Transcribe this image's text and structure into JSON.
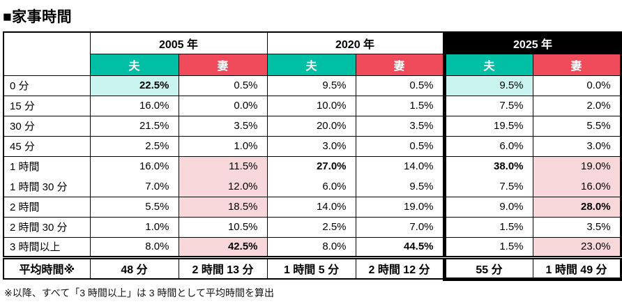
{
  "title": "■家事時間",
  "footnote": "※以降、すべて「3 時間以上」は 3 時間として平均時間を算出",
  "colors": {
    "husband_header": "#00BFA5",
    "wife_header": "#EF4B5A",
    "year_2025_bg": "#000000",
    "highlight_cyan": "#C9F4EF",
    "highlight_pink": "#F8D7DA"
  },
  "table": {
    "corner_label": "",
    "year_headers": [
      {
        "label": "2005 年",
        "dark": false
      },
      {
        "label": "2020 年",
        "dark": false
      },
      {
        "label": "2025 年",
        "dark": true
      }
    ],
    "sub_headers": {
      "husband": "夫",
      "wife": "妻"
    },
    "rows": [
      {
        "label": "0 分",
        "cells": [
          {
            "text": "22.5%",
            "bold": true,
            "highlight": "cyan"
          },
          {
            "text": "0.5%"
          },
          {
            "text": "9.5%"
          },
          {
            "text": "0.5%"
          },
          {
            "text": "9.5%",
            "highlight": "cyan"
          },
          {
            "text": "0.0%"
          }
        ]
      },
      {
        "label": "15 分",
        "cells": [
          {
            "text": "16.0%"
          },
          {
            "text": "0.0%"
          },
          {
            "text": "10.0%"
          },
          {
            "text": "1.5%"
          },
          {
            "text": "7.5%"
          },
          {
            "text": "2.0%"
          }
        ]
      },
      {
        "label": "30 分",
        "cells": [
          {
            "text": "21.5%"
          },
          {
            "text": "3.5%"
          },
          {
            "text": "20.0%"
          },
          {
            "text": "3.5%"
          },
          {
            "text": "19.5%"
          },
          {
            "text": "5.5%"
          }
        ]
      },
      {
        "label": "45 分",
        "cells": [
          {
            "text": "2.5%"
          },
          {
            "text": "1.0%"
          },
          {
            "text": "3.0%"
          },
          {
            "text": "0.5%"
          },
          {
            "text": "6.0%"
          },
          {
            "text": "3.0%"
          }
        ]
      },
      {
        "label": "1 時間",
        "merge_with_next": true,
        "cells": [
          {
            "text": "16.0%"
          },
          {
            "text": "11.5%",
            "highlight": "pink"
          },
          {
            "text": "27.0%",
            "bold": true
          },
          {
            "text": "14.0%"
          },
          {
            "text": "38.0%",
            "bold": true
          },
          {
            "text": "19.0%",
            "highlight": "pink"
          }
        ]
      },
      {
        "label": "1 時間 30 分",
        "cells": [
          {
            "text": "7.0%"
          },
          {
            "text": "12.0%",
            "highlight": "pink"
          },
          {
            "text": "6.0%"
          },
          {
            "text": "9.5%"
          },
          {
            "text": "7.5%"
          },
          {
            "text": "16.0%",
            "highlight": "pink"
          }
        ]
      },
      {
        "label": "2 時間",
        "cells": [
          {
            "text": "5.5%"
          },
          {
            "text": "18.5%",
            "highlight": "pink"
          },
          {
            "text": "14.0%"
          },
          {
            "text": "19.0%"
          },
          {
            "text": "9.0%"
          },
          {
            "text": "28.0%",
            "bold": true,
            "highlight": "pink"
          }
        ]
      },
      {
        "label": "2 時間 30 分",
        "cells": [
          {
            "text": "1.0%"
          },
          {
            "text": "10.5%"
          },
          {
            "text": "2.5%"
          },
          {
            "text": "7.0%"
          },
          {
            "text": "1.5%"
          },
          {
            "text": "3.5%"
          }
        ]
      },
      {
        "label": "3 時間以上",
        "cells": [
          {
            "text": "8.0%"
          },
          {
            "text": "42.5%",
            "bold": true,
            "highlight": "pink"
          },
          {
            "text": "8.0%"
          },
          {
            "text": "44.5%",
            "bold": true
          },
          {
            "text": "1.5%"
          },
          {
            "text": "23.0%",
            "highlight": "pink"
          }
        ]
      }
    ],
    "average_row": {
      "label": "平均時間※",
      "cells": [
        "48 分",
        "2 時間 13 分",
        "1 時間 5 分",
        "2 時間 12 分",
        "55 分",
        "1 時間 49 分"
      ]
    }
  },
  "chart_data": {
    "type": "table",
    "title": "家事時間",
    "unit": "%",
    "categories": [
      "0分",
      "15分",
      "30分",
      "45分",
      "1時間",
      "1時間30分",
      "2時間",
      "2時間30分",
      "3時間以上"
    ],
    "series": [
      {
        "name": "2005年 夫",
        "values": [
          22.5,
          16.0,
          21.5,
          2.5,
          16.0,
          7.0,
          5.5,
          1.0,
          8.0
        ],
        "average": "48分"
      },
      {
        "name": "2005年 妻",
        "values": [
          0.5,
          0.0,
          3.5,
          1.0,
          11.5,
          12.0,
          18.5,
          10.5,
          42.5
        ],
        "average": "2時間13分"
      },
      {
        "name": "2020年 夫",
        "values": [
          9.5,
          10.0,
          20.0,
          3.0,
          27.0,
          6.0,
          14.0,
          2.5,
          8.0
        ],
        "average": "1時間5分"
      },
      {
        "name": "2020年 妻",
        "values": [
          0.5,
          1.5,
          3.5,
          0.5,
          14.0,
          9.5,
          19.0,
          7.0,
          44.5
        ],
        "average": "2時間12分"
      },
      {
        "name": "2025年 夫",
        "values": [
          9.5,
          7.5,
          19.5,
          6.0,
          38.0,
          7.5,
          9.0,
          1.5,
          1.5
        ],
        "average": "55分"
      },
      {
        "name": "2025年 妻",
        "values": [
          0.0,
          2.0,
          5.5,
          3.0,
          19.0,
          16.0,
          28.0,
          3.5,
          23.0
        ],
        "average": "1時間49分"
      }
    ],
    "notes": "※以降、すべて「3時間以上」は3時間として平均時間を算出"
  }
}
